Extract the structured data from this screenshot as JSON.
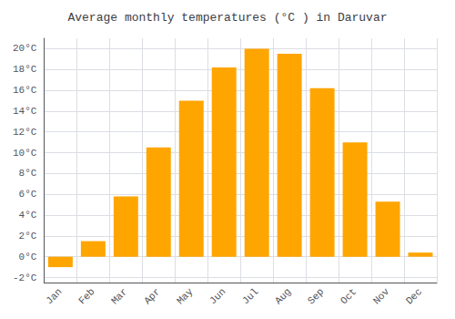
{
  "chart_data": {
    "type": "bar",
    "title": "Average monthly temperatures (°C ) in Daruvar",
    "categories": [
      "Jan",
      "Feb",
      "Mar",
      "Apr",
      "May",
      "Jun",
      "Jul",
      "Aug",
      "Sep",
      "Oct",
      "Nov",
      "Dec"
    ],
    "values": [
      -1.0,
      1.5,
      5.8,
      10.5,
      15.0,
      18.2,
      20.0,
      19.5,
      16.2,
      11.0,
      5.3,
      0.4
    ],
    "color": "#FFA500",
    "ylim": [
      -2.5,
      21
    ],
    "yticks": [
      {
        "value": -2,
        "label": "-2°C"
      },
      {
        "value": 0,
        "label": "0°C"
      },
      {
        "value": 2,
        "label": "2°C"
      },
      {
        "value": 4,
        "label": "4°C"
      },
      {
        "value": 6,
        "label": "6°C"
      },
      {
        "value": 8,
        "label": "8°C"
      },
      {
        "value": 10,
        "label": "10°C"
      },
      {
        "value": 12,
        "label": "12°C"
      },
      {
        "value": 14,
        "label": "14°C"
      },
      {
        "value": 16,
        "label": "16°C"
      },
      {
        "value": 18,
        "label": "18°C"
      },
      {
        "value": 20,
        "label": "20°C"
      }
    ],
    "grid": true
  }
}
